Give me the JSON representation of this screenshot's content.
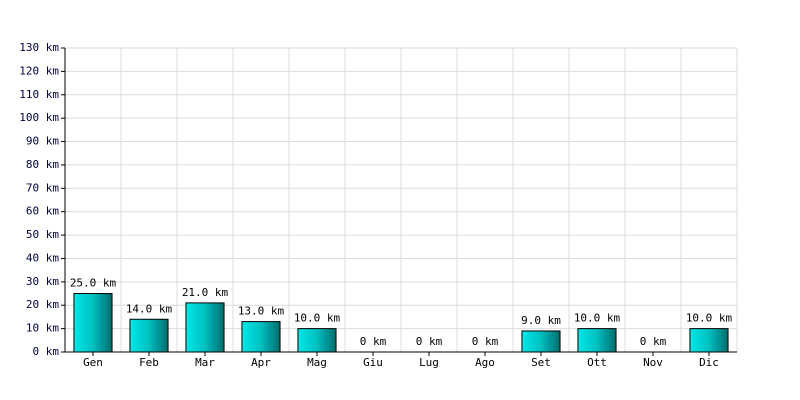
{
  "chart_data": {
    "type": "bar",
    "categories": [
      "Gen",
      "Feb",
      "Mar",
      "Apr",
      "Mag",
      "Giu",
      "Lug",
      "Ago",
      "Set",
      "Ott",
      "Nov",
      "Dic"
    ],
    "values": [
      25,
      14,
      21,
      13,
      10,
      0,
      0,
      0,
      9,
      10,
      0,
      10
    ],
    "value_labels": [
      "25.0 km",
      "14.0 km",
      "21.0 km",
      "13.0 km",
      "10.0 km",
      "0 km",
      "0 km",
      "0 km",
      "9.0 km",
      "10.0 km",
      "0 km",
      "10.0 km"
    ],
    "color": "#00c8c8",
    "ylim": [
      0,
      130
    ],
    "yticks": [
      {
        "value": 0,
        "label": "0 km"
      },
      {
        "value": 10,
        "label": "10 km"
      },
      {
        "value": 20,
        "label": "20 km"
      },
      {
        "value": 30,
        "label": "30 km"
      },
      {
        "value": 40,
        "label": "40 km"
      },
      {
        "value": 50,
        "label": "50 km"
      },
      {
        "value": 60,
        "label": "60 km"
      },
      {
        "value": 70,
        "label": "70 km"
      },
      {
        "value": 80,
        "label": "80 km"
      },
      {
        "value": 90,
        "label": "90 km"
      },
      {
        "value": 100,
        "label": "100 km"
      },
      {
        "value": 110,
        "label": "110 km"
      },
      {
        "value": 120,
        "label": "120 km"
      },
      {
        "value": 130,
        "label": "130 km"
      }
    ],
    "grid": true
  }
}
